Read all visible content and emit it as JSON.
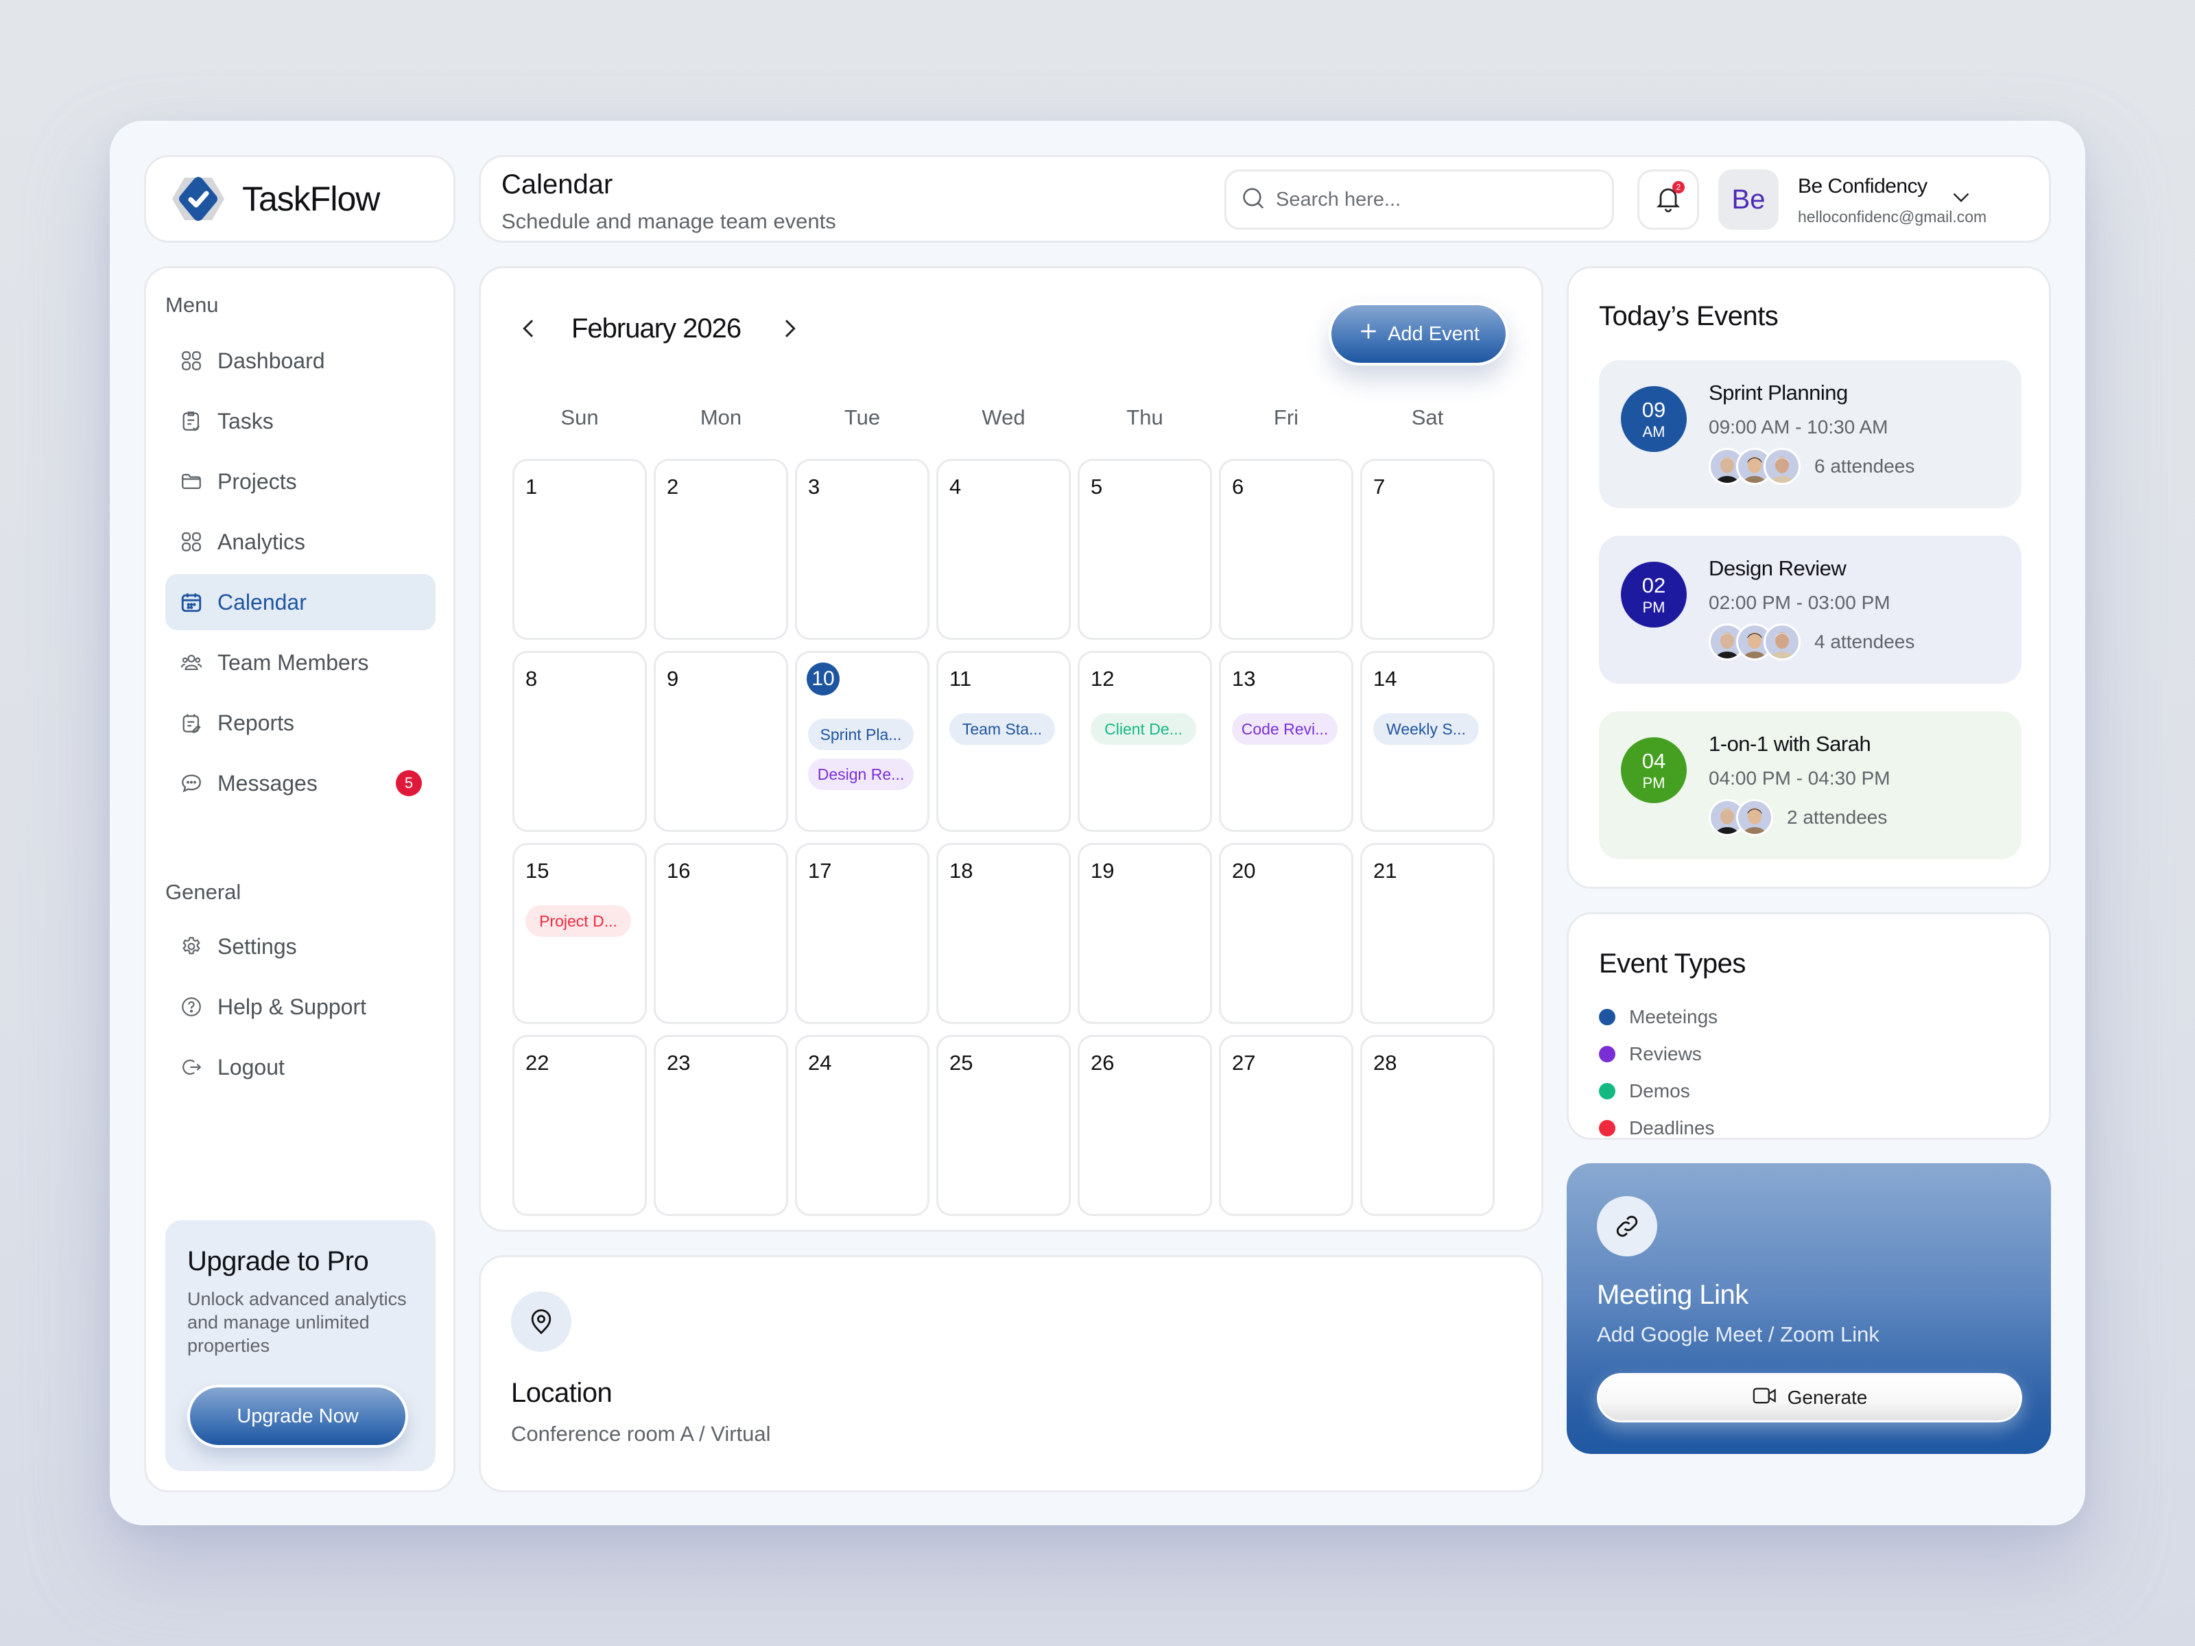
{
  "app": {
    "name": "TaskFlow",
    "brand_color": "#1e55a0"
  },
  "header": {
    "title": "Calendar",
    "subtitle": "Schedule and manage team events",
    "search_placeholder": "Search here...",
    "notification_count": "2",
    "user": {
      "initials": "Be",
      "name": "Be Confidency",
      "email": "helloconfidenc@gmail.com"
    }
  },
  "sidebar": {
    "menu_label": "Menu",
    "menu_items": [
      {
        "label": "Dashboard",
        "icon": "grid-icon"
      },
      {
        "label": "Tasks",
        "icon": "clipboard-check-icon"
      },
      {
        "label": "Projects",
        "icon": "folder-icon"
      },
      {
        "label": "Analytics",
        "icon": "grid-icon"
      },
      {
        "label": "Calendar",
        "icon": "calendar-icon",
        "active": true
      },
      {
        "label": "Team Members",
        "icon": "users-icon"
      },
      {
        "label": "Reports",
        "icon": "report-icon"
      },
      {
        "label": "Messages",
        "icon": "chat-icon",
        "badge": "5"
      }
    ],
    "general_label": "General",
    "general_items": [
      {
        "label": "Settings",
        "icon": "gear-icon"
      },
      {
        "label": "Help & Support",
        "icon": "help-icon"
      },
      {
        "label": "Logout",
        "icon": "logout-icon"
      }
    ],
    "upgrade": {
      "title": "Upgrade to Pro",
      "description": "Unlock advanced analytics and manage unlimited properties",
      "button": "Upgrade Now"
    }
  },
  "calendar": {
    "month_label": "February 2026",
    "add_event_label": "Add Event",
    "weekdays": [
      "Sun",
      "Mon",
      "Tue",
      "Wed",
      "Thu",
      "Fri",
      "Sat"
    ],
    "today": 10,
    "days": [
      "1",
      "2",
      "3",
      "4",
      "5",
      "6",
      "7",
      "8",
      "9",
      "10",
      "11",
      "12",
      "13",
      "14",
      "15",
      "16",
      "17",
      "18",
      "19",
      "20",
      "21",
      "22",
      "23",
      "24",
      "25",
      "26",
      "27",
      "28"
    ],
    "events": [
      {
        "day": 10,
        "label": "Sprint Pla...",
        "type": "meeting",
        "slot": 0
      },
      {
        "day": 10,
        "label": "Design Re...",
        "type": "review",
        "slot": 1
      },
      {
        "day": 11,
        "label": "Team Sta...",
        "type": "meeting",
        "slot": 0
      },
      {
        "day": 12,
        "label": "Client De...",
        "type": "demo",
        "slot": 0
      },
      {
        "day": 13,
        "label": "Code Revi...",
        "type": "review",
        "slot": 0
      },
      {
        "day": 14,
        "label": "Weekly S...",
        "type": "meeting",
        "slot": 0
      },
      {
        "day": 15,
        "label": "Project D...",
        "type": "deadline",
        "slot": 0
      }
    ]
  },
  "location": {
    "title": "Location",
    "value": "Conference room A / Virtual"
  },
  "todays_events": {
    "title": "Today’s Events",
    "items": [
      {
        "hour": "09",
        "period": "AM",
        "title": "Sprint Planning",
        "time": "09:00 AM - 10:30 AM",
        "attendees": "6 attendees",
        "avatar_count": 3,
        "badge_color": "#1e55a0",
        "bg": "#edf1f6"
      },
      {
        "hour": "02",
        "period": "PM",
        "title": "Design Review",
        "time": "02:00 PM - 03:00 PM",
        "attendees": "4 attendees",
        "avatar_count": 3,
        "badge_color": "#1e1aa0",
        "bg": "#eceef7"
      },
      {
        "hour": "04",
        "period": "PM",
        "title": "1-on-1 with Sarah",
        "time": "04:00 PM - 04:30 PM",
        "attendees": "2 attendees",
        "avatar_count": 2,
        "badge_color": "#45a021",
        "bg": "#eff6ee"
      }
    ]
  },
  "event_types": {
    "title": "Event Types",
    "items": [
      {
        "label": "Meeteings",
        "color": "#1e55a0"
      },
      {
        "label": "Reviews",
        "color": "#7a2fd6"
      },
      {
        "label": "Demos",
        "color": "#13b981"
      },
      {
        "label": "Deadlines",
        "color": "#f0293e"
      }
    ]
  },
  "meeting_link": {
    "title": "Meeting Link",
    "subtitle": "Add Google Meet / Zoom Link",
    "button": "Generate"
  }
}
